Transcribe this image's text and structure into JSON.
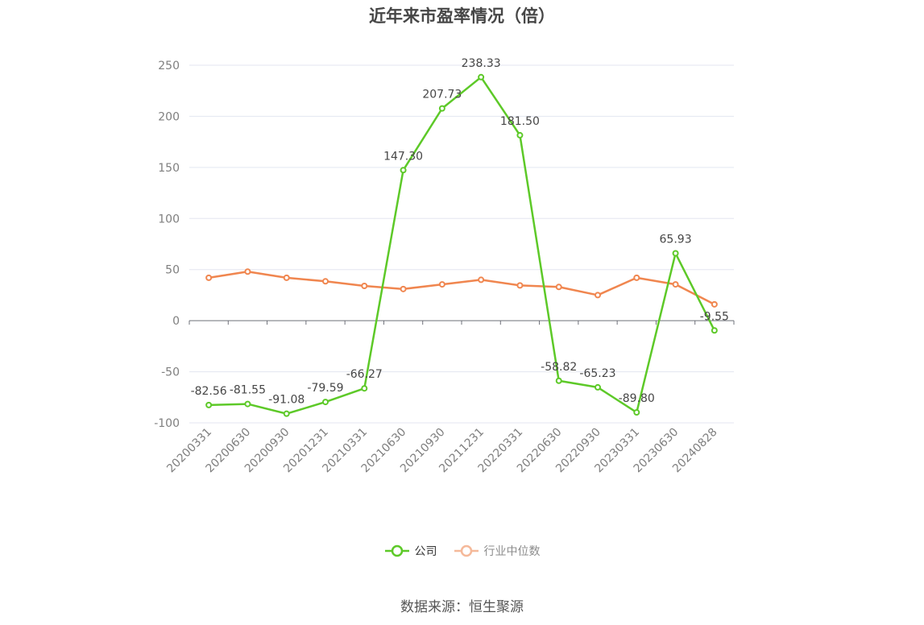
{
  "title": "近年来市盈率情况（倍）",
  "source_text": "数据来源：恒生聚源",
  "legend": [
    {
      "name": "公司",
      "color": "#5dc928"
    },
    {
      "name": "行业中位数",
      "color": "#f0864f"
    }
  ],
  "chart_data": {
    "type": "line",
    "title": "近年来市盈率情况（倍）",
    "xlabel": "",
    "ylabel": "",
    "ylim": [
      -100,
      250
    ],
    "yticks": [
      250,
      200,
      150,
      100,
      50,
      0,
      -50,
      -100
    ],
    "grid": true,
    "legend_position": "bottom",
    "categories": [
      "20200331",
      "20200630",
      "20200930",
      "20201231",
      "20210331",
      "20210630",
      "20210930",
      "20211231",
      "20220331",
      "20220630",
      "20220930",
      "20230331",
      "20230630",
      "20240828"
    ],
    "series": [
      {
        "name": "公司",
        "color": "#5dc928",
        "values": [
          -82.56,
          -81.55,
          -91.08,
          -79.59,
          -66.27,
          147.3,
          207.73,
          238.33,
          181.5,
          -58.82,
          -65.23,
          -89.8,
          65.93,
          -9.55
        ],
        "labels": [
          "-82.56",
          "-81.55",
          "-91.08",
          "-79.59",
          "-66.27",
          "147.30",
          "207.73",
          "238.33",
          "181.50",
          "-58.82",
          "-65.23",
          "-89.80",
          "65.93",
          "-9.55"
        ]
      },
      {
        "name": "行业中位数",
        "color": "#f0864f",
        "values": [
          42,
          48,
          42,
          38.5,
          34,
          31,
          35.5,
          40,
          34.5,
          33,
          25,
          42,
          35.5,
          16
        ]
      }
    ]
  }
}
